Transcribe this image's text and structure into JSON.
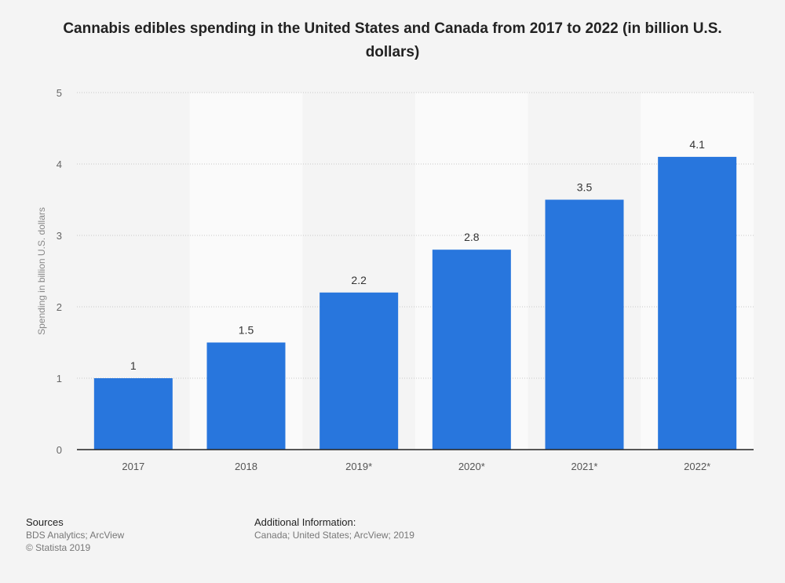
{
  "chart_data": {
    "type": "bar",
    "title": "Cannabis edibles spending in the United States and Canada from 2017 to 2022 (in billion U.S. dollars)",
    "categories": [
      "2017",
      "2018",
      "2019*",
      "2020*",
      "2021*",
      "2022*"
    ],
    "values": [
      1,
      1.5,
      2.2,
      2.8,
      3.5,
      4.1
    ],
    "data_labels": [
      "1",
      "1.5",
      "2.2",
      "2.8",
      "3.5",
      "4.1"
    ],
    "xlabel": "",
    "ylabel": "Spending in billion U.S. dollars",
    "ylim": [
      0,
      5
    ],
    "yticks": [
      0,
      1,
      2,
      3,
      4,
      5
    ],
    "grid": true,
    "bar_color": "#2876dd"
  },
  "footer": {
    "sources_heading": "Sources",
    "sources": "BDS Analytics; ArcView",
    "copyright": "© Statista 2019",
    "additional_heading": "Additional Information:",
    "additional": "Canada; United States; ArcView; 2019"
  }
}
